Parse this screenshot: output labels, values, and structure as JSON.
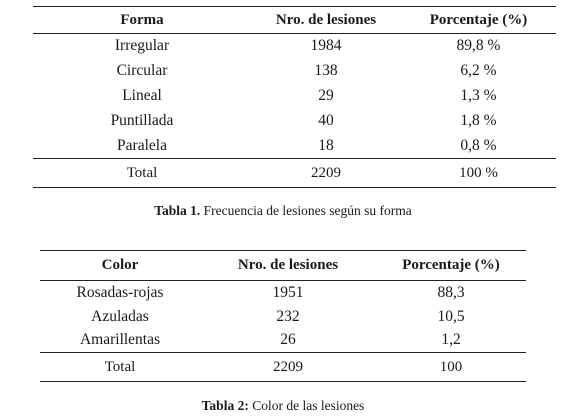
{
  "table1": {
    "headers": [
      "Forma",
      "Nro. de lesiones",
      "Porcentaje (%)"
    ],
    "rows": [
      [
        "Irregular",
        "1984",
        "89,8 %"
      ],
      [
        "Circular",
        "138",
        "6,2 %"
      ],
      [
        "Lineal",
        "29",
        "1,3 %"
      ],
      [
        "Puntillada",
        "40",
        "1,8 %"
      ],
      [
        "Paralela",
        "18",
        "0,8 %"
      ]
    ],
    "total": [
      "Total",
      "2209",
      "100 %"
    ],
    "caption_label": "Tabla  1.",
    "caption_text": "Frecuencia de lesiones según su forma"
  },
  "table2": {
    "headers": [
      "Color",
      "Nro. de lesiones",
      "Porcentaje (%)"
    ],
    "rows": [
      [
        "Rosadas-rojas",
        "1951",
        "88,3"
      ],
      [
        "Azuladas",
        "232",
        "10,5"
      ],
      [
        "Amarillentas",
        "26",
        "1,2"
      ]
    ],
    "total": [
      "Total",
      "2209",
      "100"
    ],
    "caption_label": "Tabla 2:",
    "caption_text": "Color de las lesiones"
  }
}
